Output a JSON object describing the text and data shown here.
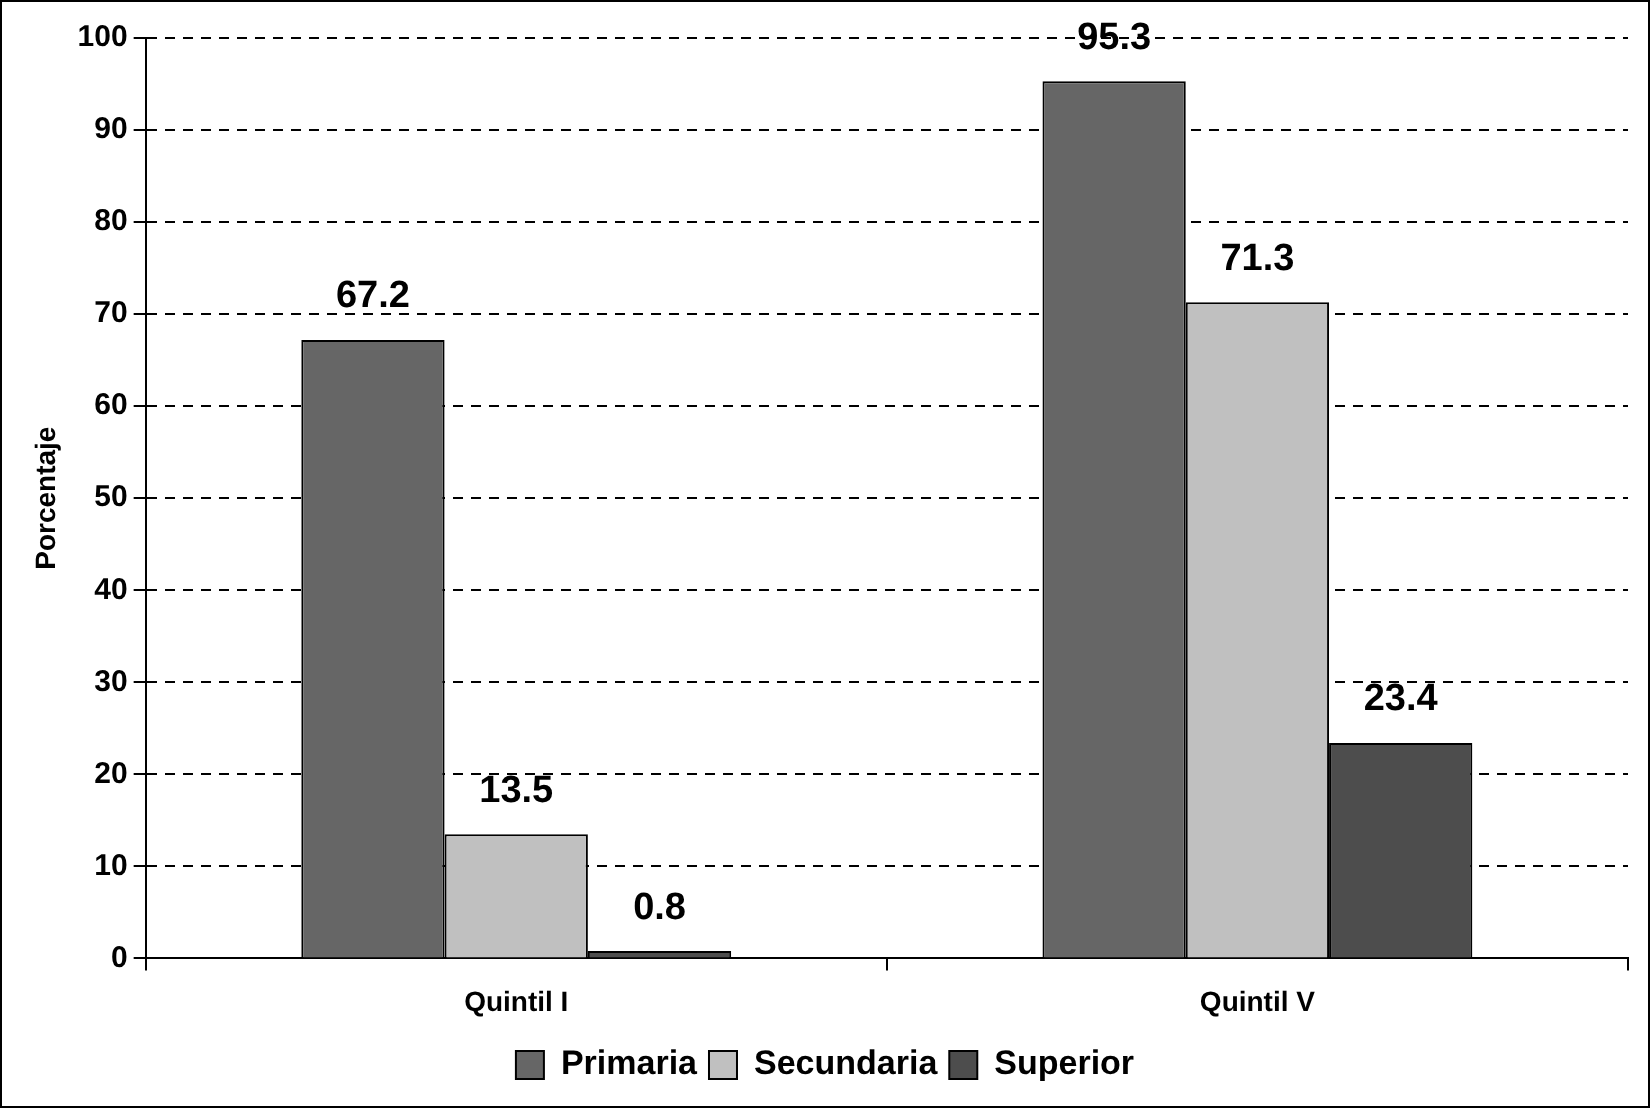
{
  "chart_data": {
    "type": "bar",
    "ylabel": "Porcentaje",
    "categories": [
      "Quintil I",
      "Quintil V"
    ],
    "series": [
      {
        "name": "Primaria",
        "color": "#666666",
        "values": [
          67.2,
          95.3
        ]
      },
      {
        "name": "Secundaria",
        "color": "#c0c0c0",
        "values": [
          13.5,
          71.3
        ]
      },
      {
        "name": "Superior",
        "color": "#4d4d4d",
        "values": [
          0.8,
          23.4
        ]
      }
    ],
    "ylim": [
      0,
      100
    ],
    "yticks": [
      0,
      10,
      20,
      30,
      40,
      50,
      60,
      70,
      80,
      90,
      100
    ],
    "grid": "y",
    "legend": "bottom",
    "data_labels": true
  }
}
